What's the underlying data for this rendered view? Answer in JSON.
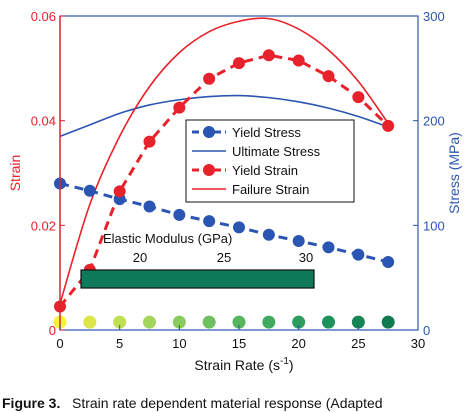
{
  "chart_data": {
    "type": "line",
    "x": [
      0,
      2.5,
      5,
      7.5,
      10,
      12.5,
      15,
      17.5,
      20,
      22.5,
      25,
      27.5
    ],
    "xlabel": "Strain  Rate (s",
    "xlabel_sup": "-1",
    "xlabel_close": ")",
    "xlim": [
      0,
      30
    ],
    "xticks": [
      "0",
      "5",
      "10",
      "15",
      "20",
      "25",
      "30"
    ],
    "ylabel_left": "Strain",
    "ylim_left": [
      0,
      0.06
    ],
    "yticks_left": [
      "0",
      "0.02",
      "0.04",
      "0.06"
    ],
    "ylabel_right": "Stress (MPa)",
    "ylim_right": [
      0,
      300
    ],
    "yticks_right": [
      "0",
      "100",
      "200",
      "300"
    ],
    "colors": {
      "red": "#e8222a",
      "blue": "#2b55b2",
      "frame": "#2b55b2"
    },
    "series": [
      {
        "name": "Yield Stress",
        "axis": "right",
        "style": "dashed-markers",
        "color": "#2b55b2",
        "x": [
          0,
          2.5,
          5,
          7.5,
          10,
          12.5,
          15,
          17.5,
          20,
          22.5,
          25,
          27.5
        ],
        "values": [
          140,
          133,
          125,
          118,
          110,
          104,
          98,
          91,
          85,
          79,
          72,
          65
        ]
      },
      {
        "name": "Ultimate Stress",
        "axis": "right",
        "style": "solid",
        "color": "#2b55b2",
        "x": [
          0,
          2.5,
          5,
          7.5,
          10,
          12.5,
          15,
          17.5,
          20,
          22.5,
          25,
          27.5
        ],
        "values": [
          185,
          196,
          207,
          215,
          220,
          223,
          224,
          222,
          218,
          212,
          204,
          194
        ]
      },
      {
        "name": "Yield Strain",
        "axis": "left",
        "style": "dashed-markers",
        "color": "#e8222a",
        "x": [
          0,
          2.5,
          5,
          7.5,
          10,
          12.5,
          15,
          17.5,
          20,
          22.5,
          25,
          27.5
        ],
        "values": [
          0.0045,
          0.0115,
          0.0265,
          0.036,
          0.0425,
          0.048,
          0.051,
          0.0525,
          0.0515,
          0.0485,
          0.0445,
          0.039
        ]
      },
      {
        "name": "Failure Strain",
        "axis": "left",
        "style": "solid",
        "color": "#e8222a",
        "x": [
          0,
          2.5,
          5,
          7.5,
          10,
          12.5,
          15,
          17.5,
          20,
          22.5,
          25,
          27.5
        ],
        "values": [
          0.005,
          0.024,
          0.037,
          0.0465,
          0.053,
          0.057,
          0.059,
          0.0595,
          0.0575,
          0.0535,
          0.0475,
          0.0395
        ]
      }
    ],
    "elastic_modulus": {
      "title": "Elastic Modulus (GPa)",
      "ticks": [
        "20",
        "25",
        "30"
      ],
      "x": [
        0,
        2.5,
        5,
        7.5,
        10,
        12.5,
        15,
        17.5,
        20,
        22.5,
        25,
        27.5
      ],
      "y_strain": 0.0015,
      "colors": [
        "#f7f23a",
        "#dce64a",
        "#c0df52",
        "#a3d55c",
        "#88cb5f",
        "#6ec060",
        "#57b55f",
        "#42aa5f",
        "#2e9e5e",
        "#1f915b",
        "#168556",
        "#127a50"
      ],
      "bar_color": "#0f7a5a"
    },
    "legend_position": "center"
  },
  "caption": {
    "label": "Figure 3.",
    "text": "Strain rate dependent material response (Adapted"
  }
}
